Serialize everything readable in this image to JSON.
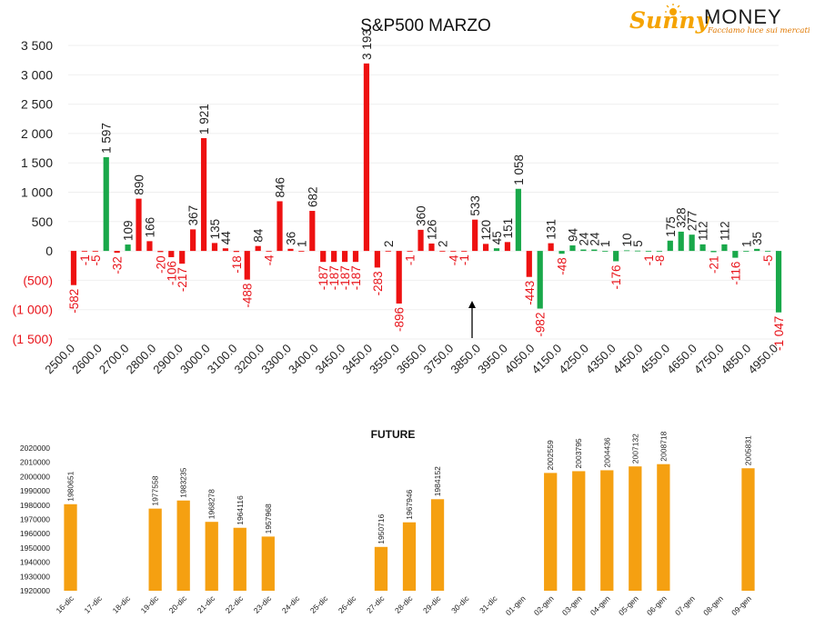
{
  "logo": {
    "brand_a": "Sunny",
    "brand_b": "MONEY",
    "tagline": "Facciamo luce sui mercati"
  },
  "colors": {
    "pos": "#ee1111",
    "neg": "#19a84a",
    "future": "#f5a011",
    "neg_label": "#e8141b"
  },
  "chart_data": [
    {
      "type": "bar",
      "title": "S&P500 MARZO",
      "ylim": [
        -1500,
        3500
      ],
      "yticks": [
        3500,
        3000,
        2500,
        2000,
        1500,
        1000,
        500,
        0,
        -500,
        -1000,
        -1500
      ],
      "yticklabels": [
        "3 500",
        "3 000",
        "2 500",
        "2 000",
        "1 500",
        "1 000",
        "500",
        "0",
        "(500)",
        "(1 000)",
        "(1 500)"
      ],
      "xticklabels": [
        "2500.0",
        "2600.0",
        "2700.0",
        "2800.0",
        "2900.0",
        "3000.0",
        "3100.0",
        "3200.0",
        "3300.0",
        "3400.0",
        "3450.0",
        "3450.0",
        "3550.0",
        "3650.0",
        "3750.0",
        "3850.0",
        "3950.0",
        "4050.0",
        "4150.0",
        "4250.0",
        "4350.0",
        "4450.0",
        "4550.0",
        "4650.0",
        "4750.0",
        "4850.0",
        "4950.0"
      ],
      "bars": [
        {
          "v": -582,
          "l": "-582",
          "c": "pos"
        },
        {
          "v": -1,
          "l": "-1",
          "c": "pos"
        },
        {
          "v": -5,
          "l": "-5",
          "c": "pos"
        },
        {
          "v": 1597,
          "l": "1 597",
          "c": "neg"
        },
        {
          "v": -32,
          "l": "-32",
          "c": "pos"
        },
        {
          "v": 109,
          "l": "109",
          "c": "neg"
        },
        {
          "v": 890,
          "l": "890",
          "c": "pos"
        },
        {
          "v": 166,
          "l": "166",
          "c": "pos"
        },
        {
          "v": -20,
          "l": "-20",
          "c": "pos"
        },
        {
          "v": -106,
          "l": "-106",
          "c": "pos"
        },
        {
          "v": -217,
          "l": "-217",
          "c": "pos"
        },
        {
          "v": 367,
          "l": "367",
          "c": "pos"
        },
        {
          "v": 1921,
          "l": "1 921",
          "c": "pos"
        },
        {
          "v": 135,
          "l": "135",
          "c": "pos"
        },
        {
          "v": 44,
          "l": "44",
          "c": "pos"
        },
        {
          "v": -18,
          "l": "-18",
          "c": "pos"
        },
        {
          "v": -488,
          "l": "-488",
          "c": "pos"
        },
        {
          "v": 84,
          "l": "84",
          "c": "pos"
        },
        {
          "v": -4,
          "l": "-4",
          "c": "pos"
        },
        {
          "v": 846,
          "l": "846",
          "c": "pos"
        },
        {
          "v": 36,
          "l": "36",
          "c": "pos"
        },
        {
          "v": 1,
          "l": "1",
          "c": "pos"
        },
        {
          "v": 682,
          "l": "682",
          "c": "pos"
        },
        {
          "v": -187,
          "l": "-187",
          "c": "pos"
        },
        {
          "v": -187,
          "l": "-187",
          "c": "pos"
        },
        {
          "v": -187,
          "l": "-187",
          "c": "pos"
        },
        {
          "v": -187,
          "l": "-187",
          "c": "pos"
        },
        {
          "v": 3193,
          "l": "3 193",
          "c": "pos"
        },
        {
          "v": -283,
          "l": "-283",
          "c": "pos"
        },
        {
          "v": 2,
          "l": "2",
          "c": "pos"
        },
        {
          "v": -896,
          "l": "-896",
          "c": "pos"
        },
        {
          "v": -1,
          "l": "-1",
          "c": "pos"
        },
        {
          "v": 360,
          "l": "360",
          "c": "pos"
        },
        {
          "v": 126,
          "l": "126",
          "c": "pos"
        },
        {
          "v": 2,
          "l": "2",
          "c": "pos"
        },
        {
          "v": -4,
          "l": "-4",
          "c": "pos"
        },
        {
          "v": -1,
          "l": "-1",
          "c": "pos"
        },
        {
          "v": 533,
          "l": "533",
          "c": "pos"
        },
        {
          "v": 120,
          "l": "120",
          "c": "pos"
        },
        {
          "v": 45,
          "l": "45",
          "c": "neg"
        },
        {
          "v": 151,
          "l": "151",
          "c": "pos"
        },
        {
          "v": 1058,
          "l": "1 058",
          "c": "neg"
        },
        {
          "v": -443,
          "l": "-443",
          "c": "pos"
        },
        {
          "v": -982,
          "l": "-982",
          "c": "neg"
        },
        {
          "v": 131,
          "l": "131",
          "c": "pos"
        },
        {
          "v": -48,
          "l": "-48",
          "c": "neg"
        },
        {
          "v": 94,
          "l": "94",
          "c": "neg"
        },
        {
          "v": 24,
          "l": "24",
          "c": "neg"
        },
        {
          "v": 24,
          "l": "24",
          "c": "neg"
        },
        {
          "v": 1,
          "l": "1",
          "c": "neg"
        },
        {
          "v": -176,
          "l": "-176",
          "c": "neg"
        },
        {
          "v": 10,
          "l": "10",
          "c": "neg"
        },
        {
          "v": 5,
          "l": "5",
          "c": "neg"
        },
        {
          "v": -1,
          "l": "-1",
          "c": "neg"
        },
        {
          "v": -8,
          "l": "-8",
          "c": "neg"
        },
        {
          "v": 175,
          "l": "175",
          "c": "neg"
        },
        {
          "v": 328,
          "l": "328",
          "c": "neg"
        },
        {
          "v": 277,
          "l": "277",
          "c": "neg"
        },
        {
          "v": 112,
          "l": "112",
          "c": "neg"
        },
        {
          "v": -21,
          "l": "-21",
          "c": "neg"
        },
        {
          "v": 112,
          "l": "112",
          "c": "neg"
        },
        {
          "v": -116,
          "l": "-116",
          "c": "neg"
        },
        {
          "v": 1,
          "l": "1",
          "c": "neg"
        },
        {
          "v": 35,
          "l": "35",
          "c": "neg"
        },
        {
          "v": -5,
          "l": "-5",
          "c": "neg"
        },
        {
          "v": -1047,
          "l": "-1 047",
          "c": "neg"
        }
      ]
    },
    {
      "type": "bar",
      "title": "FUTURE",
      "ylim": [
        1920000,
        2020000
      ],
      "yticks": [
        2020000,
        2010000,
        2000000,
        1990000,
        1980000,
        1970000,
        1960000,
        1950000,
        1940000,
        1930000,
        1920000
      ],
      "categories": [
        "16-dic",
        "17-dic",
        "18-dic",
        "19-dic",
        "20-dic",
        "21-dic",
        "22-dic",
        "23-dic",
        "24-dic",
        "25-dic",
        "26-dic",
        "27-dic",
        "28-dic",
        "29-dic",
        "30-dic",
        "31-dic",
        "01-gen",
        "02-gen",
        "03-gen",
        "04-gen",
        "05-gen",
        "06-gen",
        "07-gen",
        "08-gen",
        "09-gen"
      ],
      "values": [
        1980651,
        null,
        null,
        1977558,
        1983235,
        1968278,
        1964116,
        1957968,
        null,
        null,
        null,
        1950716,
        1967946,
        1984152,
        null,
        null,
        null,
        2002559,
        2003795,
        2004436,
        2007132,
        2008718,
        null,
        null,
        2005831
      ]
    }
  ]
}
